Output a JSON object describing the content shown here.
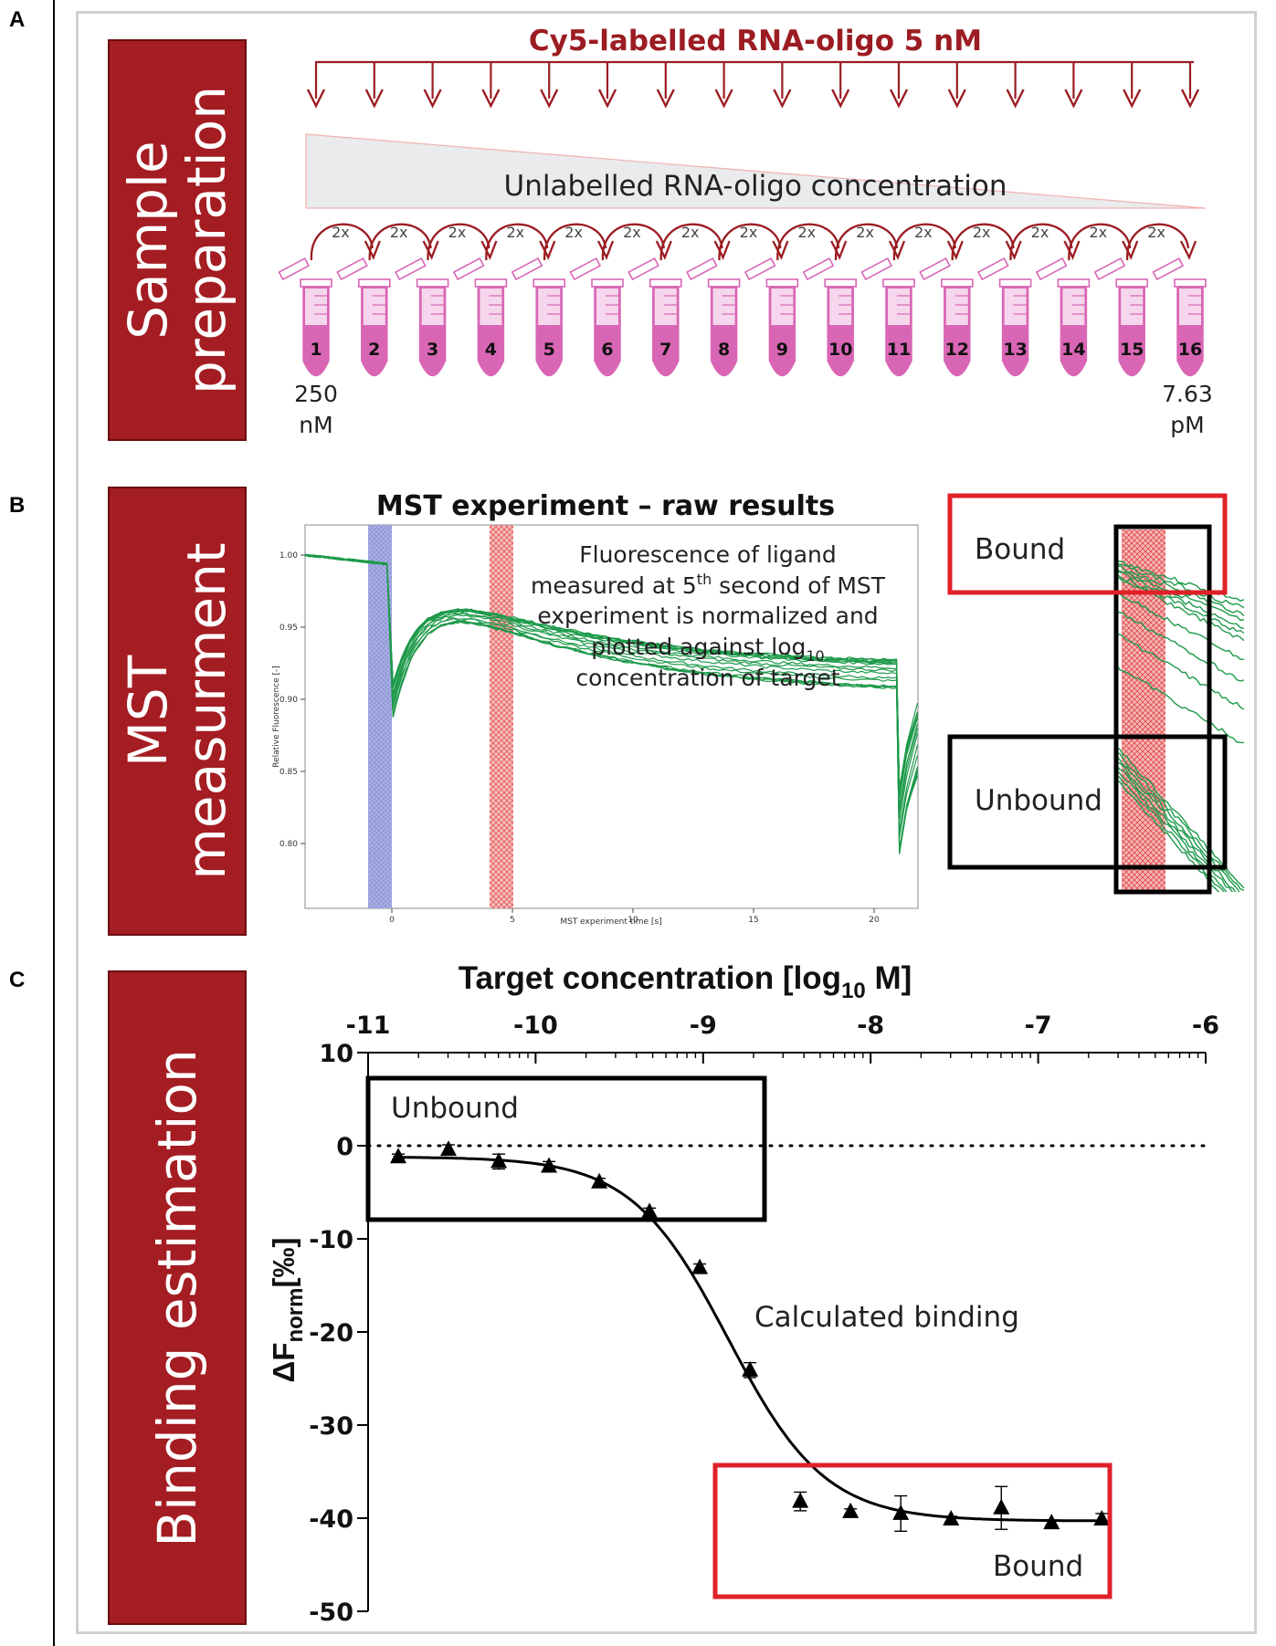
{
  "panels": {
    "a": {
      "letter": "A",
      "side_label_line1": "Sample",
      "side_label_line2": "preparation",
      "title": "Cy5-labelled RNA-oligo 5 nM",
      "gradient_label": "Unlabelled RNA-oligo concentration",
      "dilution_label": "2x",
      "tube_numbers": [
        "1",
        "2",
        "3",
        "4",
        "5",
        "6",
        "7",
        "8",
        "9",
        "10",
        "11",
        "12",
        "13",
        "14",
        "15",
        "16"
      ],
      "start_conc_value": "250",
      "start_conc_unit": "nM",
      "end_conc_value": "7.63",
      "end_conc_unit": "pM"
    },
    "b": {
      "letter": "B",
      "side_label_line1": "MST",
      "side_label_line2": "measurment",
      "title": "MST experiment – raw results",
      "note_line1": "Fluorescence of ligand",
      "note_line2a": "measured at 5",
      "note_line2sup": "th",
      "note_line2b": " second of MST",
      "note_line3": "experiment is normalized and",
      "note_line4a": "plotted against log",
      "note_line4sub": "10",
      "note_line5": "concentration of target",
      "xlabel": "MST experiment time [s]",
      "ylabel": "Relative Fluorescence [-]",
      "x_ticks": [
        "0",
        "5",
        "10",
        "15",
        "20"
      ],
      "y_ticks": [
        "1.00",
        "0.95",
        "0.90",
        "0.85",
        "0.80"
      ],
      "bound_label": "Bound",
      "unbound_label": "Unbound"
    },
    "c": {
      "letter": "C",
      "side_label": "Binding estimation",
      "xlabel_main": "Target concentration [log",
      "xlabel_sub": "10",
      "xlabel_end": " M]",
      "ylabel_main": "ΔF",
      "ylabel_sub": "norm",
      "ylabel_end": "[‰]",
      "unbound_label": "Unbound",
      "bound_label": "Bound",
      "fit_label": "Calculated binding"
    }
  },
  "colors": {
    "dark_red": "#a31d22",
    "arrow_red": "#9b1c22",
    "tube_pink": "#d966b5",
    "trace_green": "#1e9a4a",
    "blue_band": "#8f97d6",
    "red_band": "#f07070",
    "box_red": "#e02028"
  },
  "chart_data": {
    "type": "scatter",
    "x_ticks": [
      "-11",
      "-10",
      "-9",
      "-8",
      "-7",
      "-6"
    ],
    "y_ticks": [
      "10",
      "0",
      "-10",
      "-20",
      "-30",
      "-40",
      "-50"
    ],
    "xlim": [
      -11,
      -6
    ],
    "ylim": [
      -50,
      10
    ],
    "x_axis_position": "top",
    "zero_line": "dotted",
    "series": [
      {
        "marker": "triangle",
        "x": [
          -10.82,
          -10.52,
          -10.22,
          -9.92,
          -9.62,
          -9.32,
          -9.02,
          -8.72,
          -8.42,
          -8.12,
          -7.82,
          -7.52,
          -7.22,
          -6.92,
          -6.62
        ],
        "y": [
          -1.2,
          -0.4,
          -1.7,
          -2.2,
          -3.9,
          -7.1,
          -13.1,
          -24.1,
          -38.2,
          -39.3,
          -39.5,
          -40.1,
          -38.9,
          -40.5,
          -40.1
        ],
        "err": [
          0.3,
          0.5,
          0.8,
          0.5,
          0.4,
          0.4,
          0.4,
          0.8,
          1.0,
          0.3,
          1.9,
          0.3,
          2.3,
          0.3,
          0.6
        ]
      }
    ],
    "fit": {
      "type": "sigmoid",
      "top": -1.2,
      "bottom": -40.3,
      "ec50_log": -8.85,
      "slope": 1.5
    }
  }
}
